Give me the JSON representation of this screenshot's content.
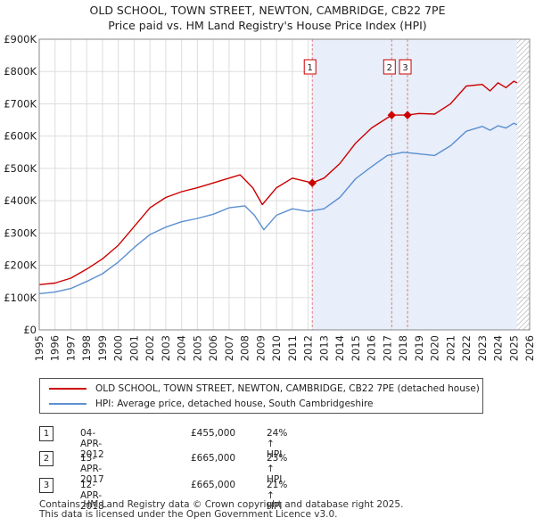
{
  "title_line1": "OLD SCHOOL, TOWN STREET, NEWTON, CAMBRIDGE, CB22 7PE",
  "title_line2": "Price paid vs. HM Land Registry's House Price Index (HPI)",
  "colors": {
    "price_line": "#cc0000",
    "hpi_line": "#5b8fd0",
    "shade": "#e8eefa",
    "grid": "#dddddd",
    "marker_line": "#e08080",
    "hatch": "#999999"
  },
  "chart_data": {
    "type": "line",
    "ylim": [
      0,
      900000
    ],
    "y_ticks": [
      0,
      100000,
      200000,
      300000,
      400000,
      500000,
      600000,
      700000,
      800000,
      900000
    ],
    "y_tick_labels": [
      "£0",
      "£100K",
      "£200K",
      "£300K",
      "£400K",
      "£500K",
      "£600K",
      "£700K",
      "£800K",
      "£900K"
    ],
    "xlim": [
      1995,
      2026
    ],
    "x_tick_labels": [
      "1995",
      "1996",
      "1997",
      "1998",
      "1999",
      "2000",
      "2001",
      "2002",
      "2003",
      "2004",
      "2005",
      "2006",
      "2007",
      "2008",
      "2009",
      "2010",
      "2011",
      "2012",
      "2013",
      "2014",
      "2015",
      "2016",
      "2017",
      "2018",
      "2019",
      "2020",
      "2021",
      "2022",
      "2023",
      "2024",
      "2025",
      "2026"
    ],
    "forecast_start": 2025.2,
    "shaded_from": 2012.26,
    "series": [
      {
        "name": "OLD SCHOOL, TOWN STREET, NEWTON, CAMBRIDGE, CB22 7PE (detached house)",
        "x": [
          1995,
          1996,
          1997,
          1998,
          1999,
          2000,
          2001,
          2002,
          2003,
          2004,
          2005,
          2006,
          2007,
          2007.7,
          2008.5,
          2009.1,
          2010,
          2011,
          2012.26,
          2013,
          2014,
          2015,
          2016,
          2017.28,
          2018.28,
          2019,
          2020,
          2021,
          2022,
          2023,
          2023.5,
          2024,
          2024.5,
          2025,
          2025.2
        ],
        "values": [
          140000,
          145000,
          160000,
          188000,
          220000,
          262000,
          320000,
          378000,
          410000,
          428000,
          440000,
          455000,
          470000,
          480000,
          440000,
          388000,
          440000,
          470000,
          455000,
          470000,
          515000,
          578000,
          625000,
          665000,
          665000,
          670000,
          668000,
          700000,
          755000,
          760000,
          740000,
          765000,
          750000,
          770000,
          765000
        ]
      },
      {
        "name": "HPI: Average price, detached house, South Cambridgeshire",
        "x": [
          1995,
          1996,
          1997,
          1998,
          1999,
          2000,
          2001,
          2002,
          2003,
          2004,
          2005,
          2006,
          2007,
          2008,
          2008.6,
          2009.2,
          2010,
          2011,
          2012,
          2013,
          2014,
          2015,
          2016,
          2017,
          2018,
          2019,
          2020,
          2021,
          2022,
          2023,
          2023.5,
          2024,
          2024.5,
          2025,
          2025.2
        ],
        "values": [
          112000,
          117000,
          128000,
          150000,
          174000,
          210000,
          255000,
          295000,
          318000,
          335000,
          345000,
          358000,
          378000,
          384000,
          355000,
          310000,
          355000,
          375000,
          367000,
          375000,
          410000,
          468000,
          505000,
          540000,
          550000,
          545000,
          540000,
          570000,
          615000,
          630000,
          618000,
          632000,
          625000,
          640000,
          635000
        ]
      }
    ],
    "sale_markers": [
      {
        "label": "1",
        "x": 2012.26,
        "value": 455000
      },
      {
        "label": "2",
        "x": 2017.28,
        "value": 665000
      },
      {
        "label": "3",
        "x": 2018.28,
        "value": 665000
      }
    ]
  },
  "legend": {
    "price_label": "OLD SCHOOL, TOWN STREET, NEWTON, CAMBRIDGE, CB22 7PE (detached house)",
    "hpi_label": "HPI: Average price, detached house, South Cambridgeshire"
  },
  "sales": [
    {
      "num": "1",
      "date": "04-APR-2012",
      "price": "£455,000",
      "hpi": "24% ↑ HPI"
    },
    {
      "num": "2",
      "date": "13-APR-2017",
      "price": "£665,000",
      "hpi": "23% ↑ HPI"
    },
    {
      "num": "3",
      "date": "12-APR-2018",
      "price": "£665,000",
      "hpi": "21% ↑ HPI"
    }
  ],
  "footer_line1": "Contains HM Land Registry data © Crown copyright and database right 2025.",
  "footer_line2": "This data is licensed under the Open Government Licence v3.0."
}
